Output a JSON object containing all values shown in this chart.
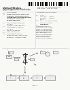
{
  "page_bg": "#f8f8f5",
  "barcode_color": "#111111",
  "dark": "#2a2a2a",
  "gray": "#888888",
  "med": "#555555",
  "light_gray": "#cccccc",
  "box_fill": "#eeeeee",
  "box_edge": "#666666"
}
